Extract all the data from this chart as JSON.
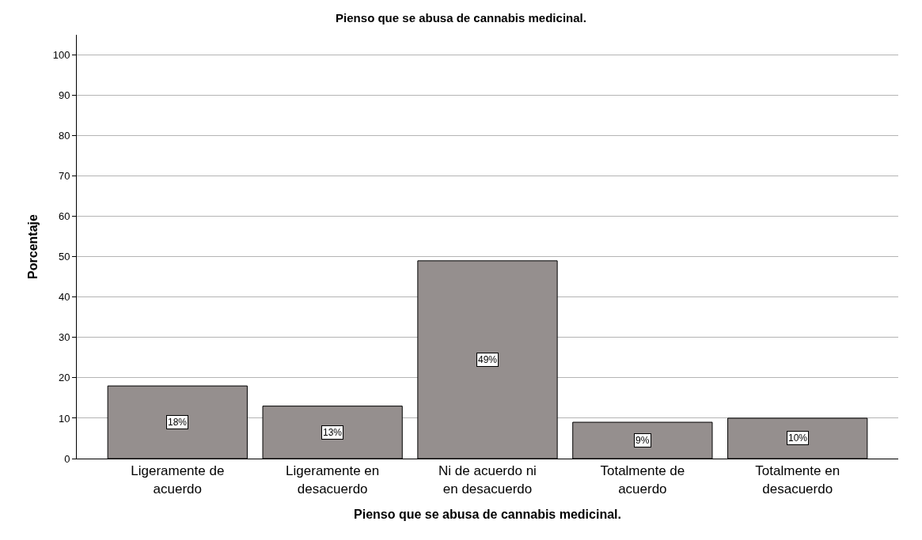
{
  "chart_data": {
    "type": "bar",
    "title": "Pienso que se abusa de cannabis medicinal.",
    "xlabel": "Pienso que se abusa de cannabis medicinal.",
    "ylabel": "Porcentaje",
    "categories": [
      "Ligeramente de acuerdo",
      "Ligeramente en desacuerdo",
      "Ni de acuerdo ni en desacuerdo",
      "Totalmente de acuerdo",
      "Totalmente en desacuerdo"
    ],
    "values": [
      18,
      13,
      49,
      9,
      10
    ],
    "value_labels": [
      "18%",
      "13%",
      "49%",
      "9%",
      "10%"
    ],
    "color": "#958f8e",
    "ylim": [
      0,
      105
    ],
    "yticks": [
      0,
      10,
      20,
      30,
      40,
      50,
      60,
      70,
      80,
      90,
      100
    ],
    "grid": "y",
    "legend": false
  }
}
